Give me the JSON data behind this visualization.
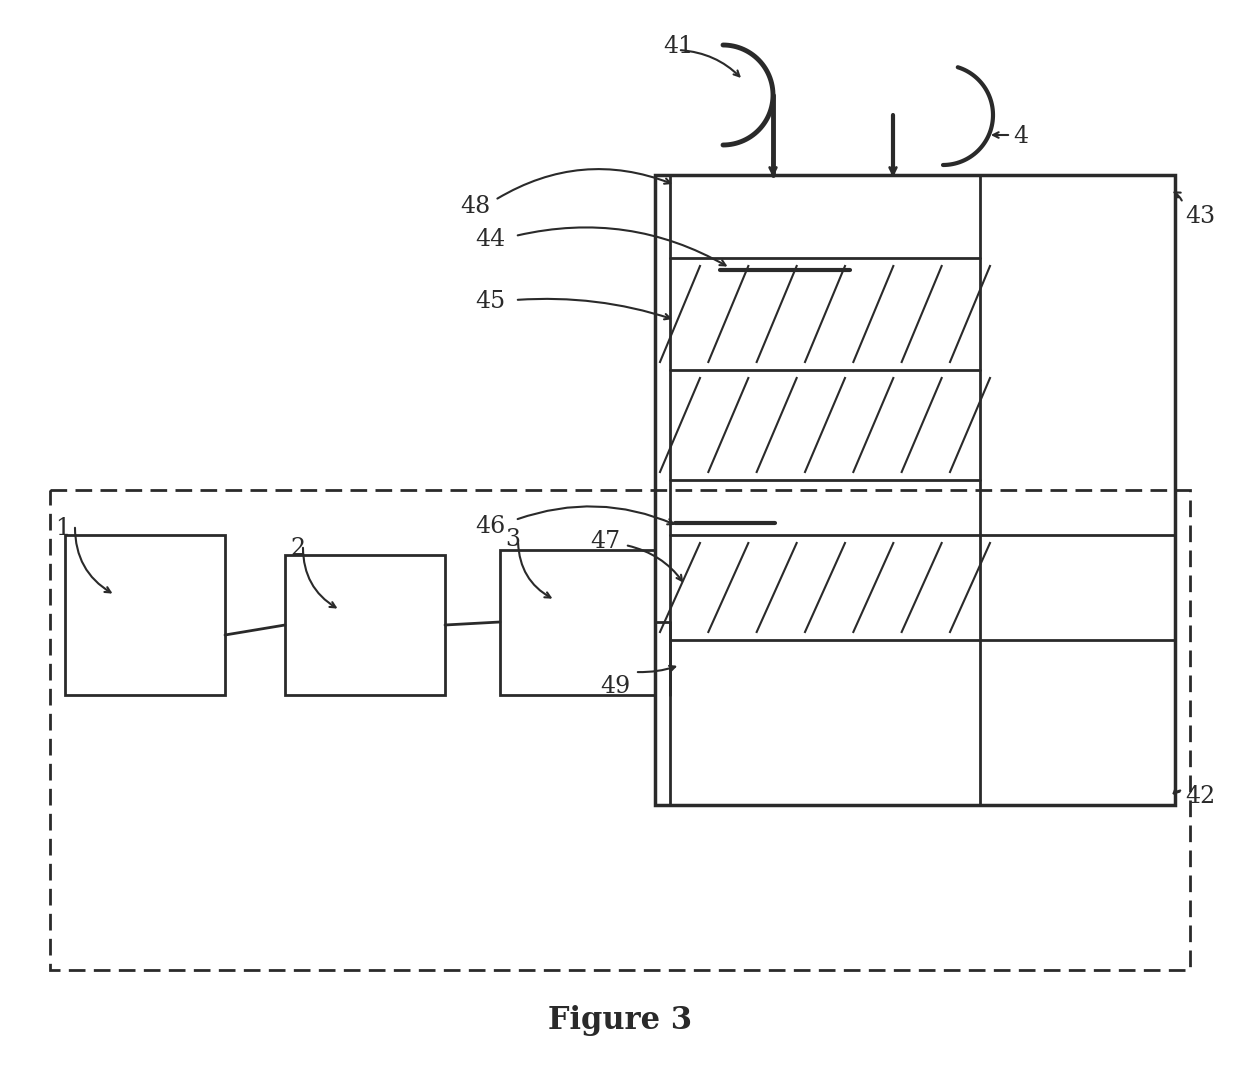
{
  "background_color": "#ffffff",
  "figure_title": "Figure 3",
  "figure_title_fontsize": 22,
  "line_color": "#2a2a2a",
  "line_width": 2.0,
  "label_fontsize": 17
}
